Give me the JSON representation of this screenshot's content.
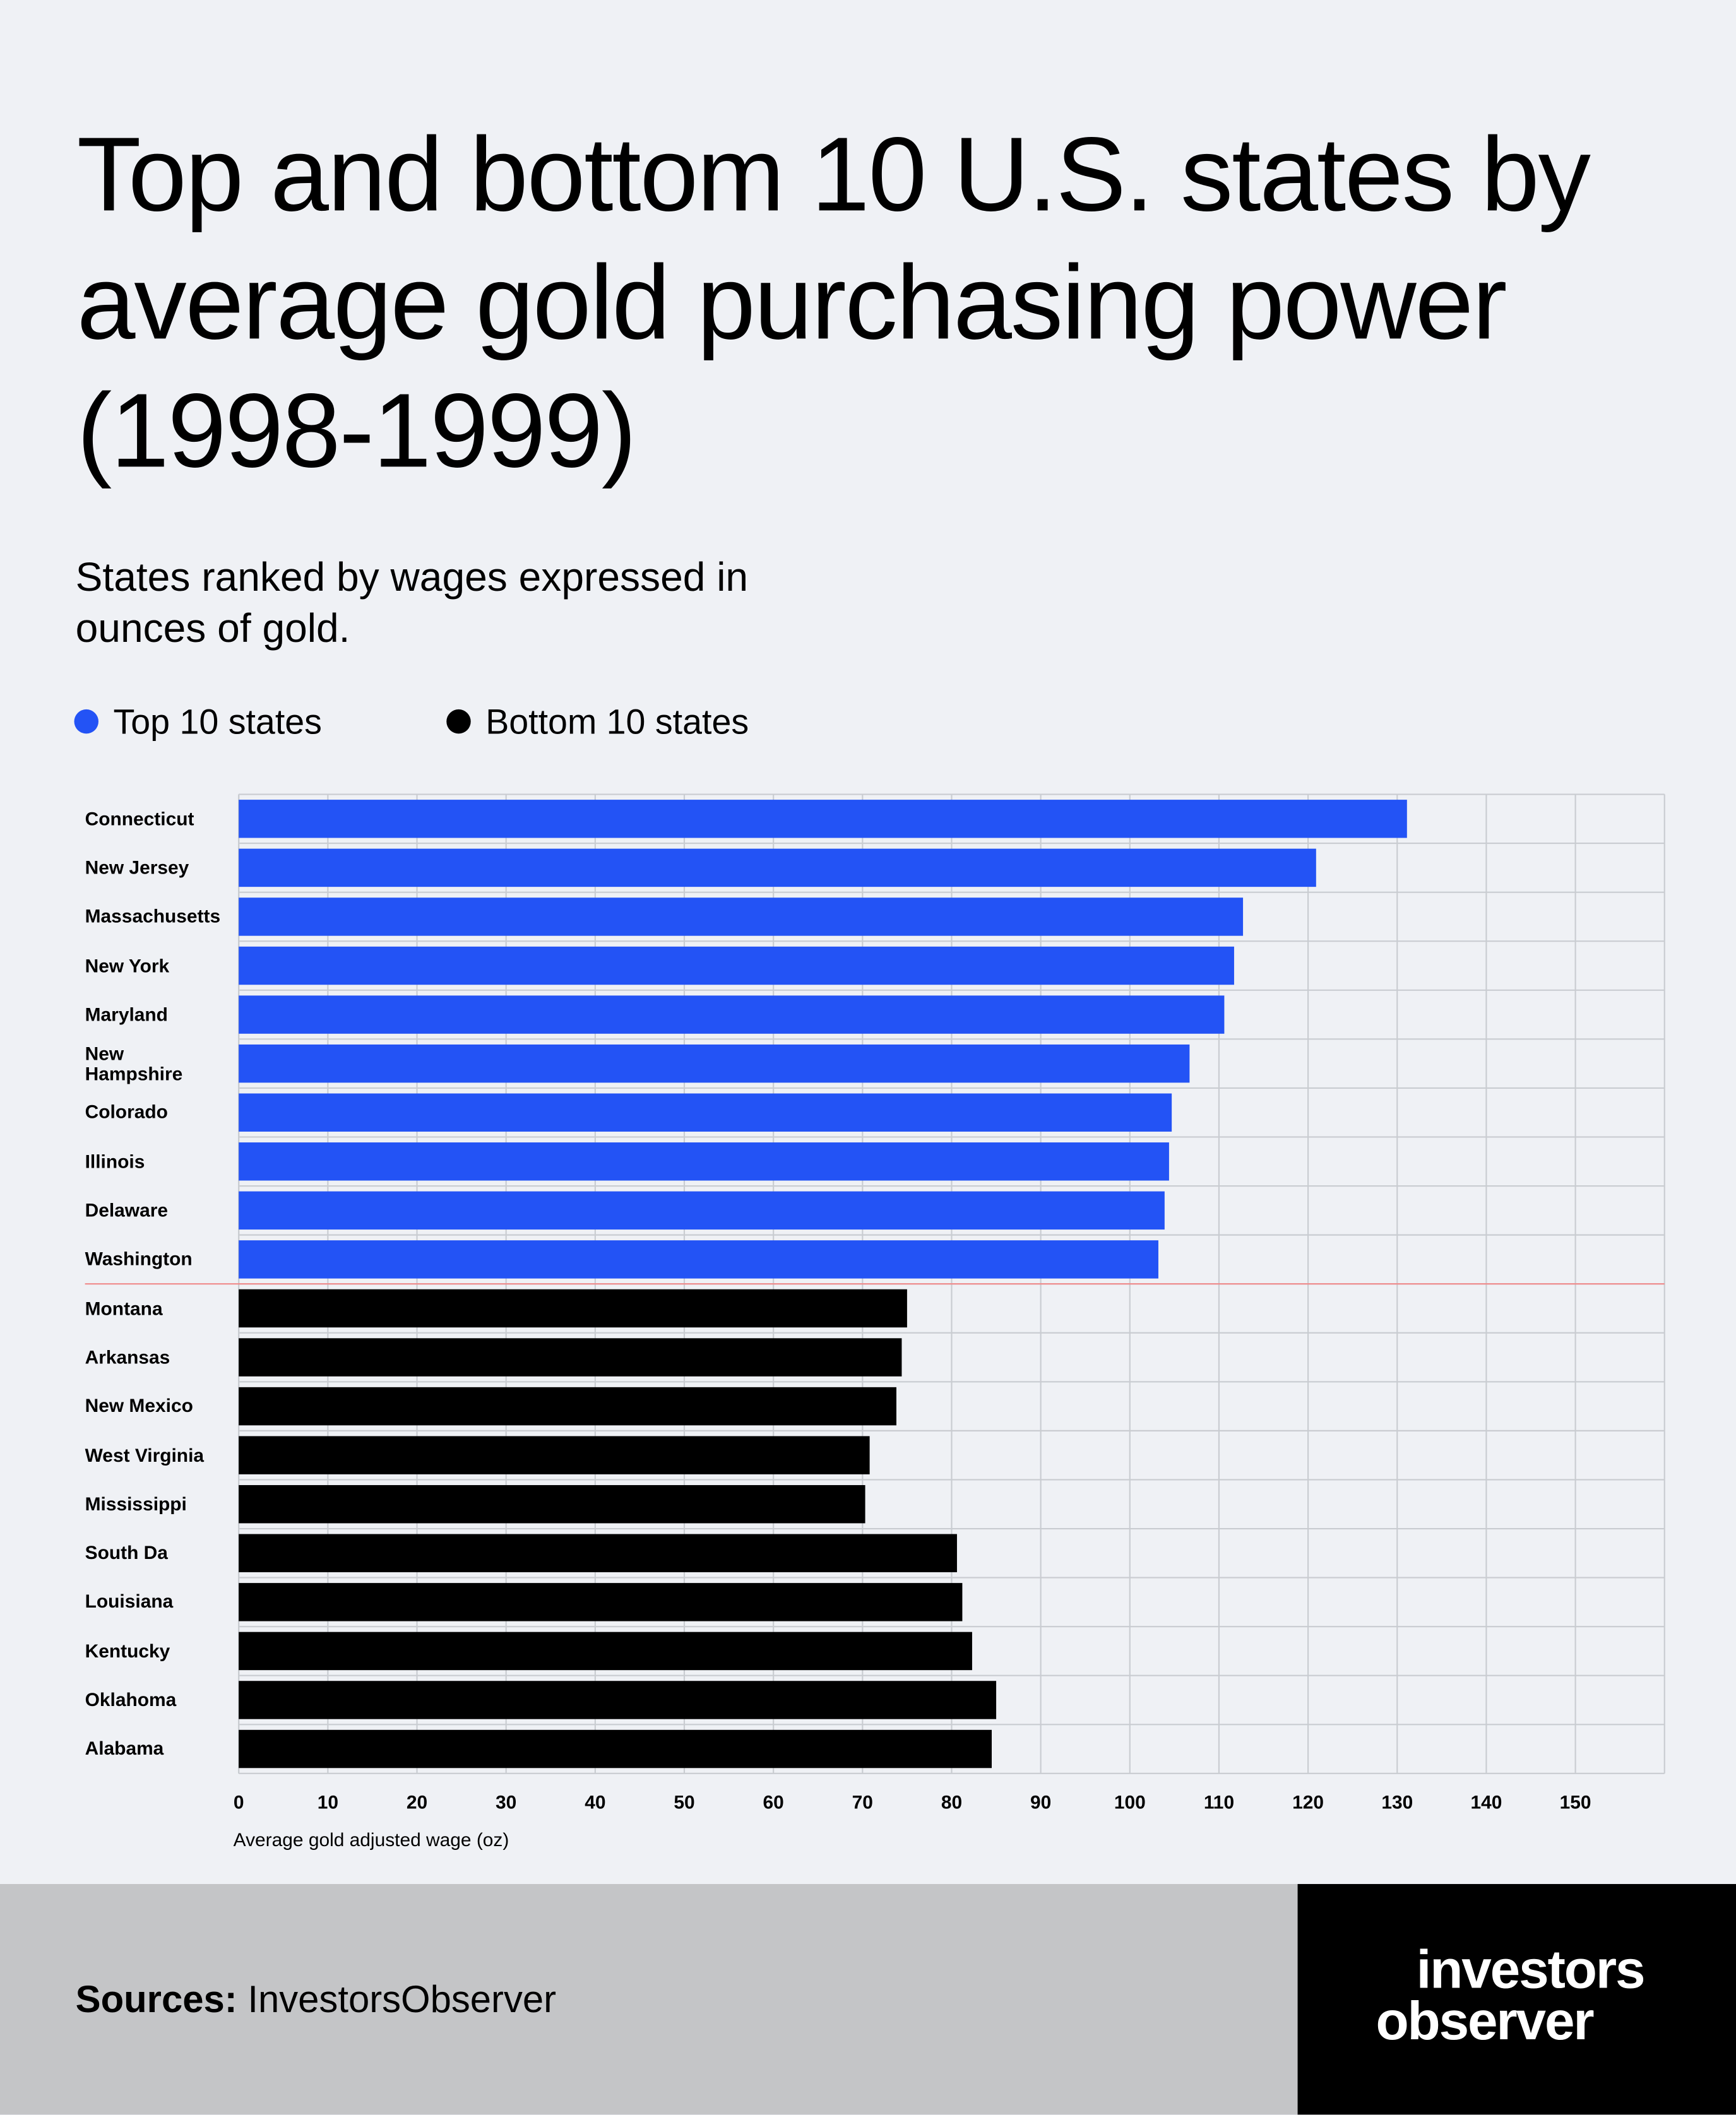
{
  "chart_data": {
    "type": "bar",
    "orientation": "horizontal",
    "title": "Top and bottom 10 U.S. states by average gold purchasing power (1998-1999)",
    "subtitle": "States ranked by wages expressed in ounces of gold.",
    "x_label": "Average gold adjusted wage (oz)",
    "categories": [
      "Connecticut",
      "New Jersey",
      "Massachusetts",
      "New York",
      "Maryland",
      "New\nHampshire",
      "Colorado",
      "Illinois",
      "Delaware",
      "Washington",
      "Montana",
      "Arkansas",
      "New Mexico",
      "West Virginia",
      "Mississippi",
      "South Da",
      "Louisiana",
      "Kentucky",
      "Oklahoma",
      "Alabama"
    ],
    "series": [
      {
        "name": "Top 10 states",
        "color": "#2353f5",
        "values": [
          131.1,
          120.9,
          112.7,
          111.7,
          110.6,
          106.7,
          104.7,
          104.4,
          103.9,
          103.2,
          null,
          null,
          null,
          null,
          null,
          null,
          null,
          null,
          null,
          null
        ]
      },
      {
        "name": "Bottom 10 states",
        "color": "#000000",
        "values": [
          null,
          null,
          null,
          null,
          null,
          null,
          null,
          null,
          null,
          null,
          75.0,
          74.4,
          73.8,
          70.8,
          70.3,
          80.6,
          81.2,
          82.3,
          85.0,
          84.5
        ]
      }
    ],
    "xlim": [
      0,
      160
    ],
    "xticks": [
      0,
      10,
      20,
      30,
      40,
      50,
      60,
      70,
      80,
      90,
      100,
      110,
      120,
      130,
      140,
      150
    ],
    "grid": true
  },
  "footer": {
    "sources_label": "Sources:",
    "sources_text": "InvestorsObserver",
    "logo_line1": "investors",
    "logo_line2": "observer"
  }
}
